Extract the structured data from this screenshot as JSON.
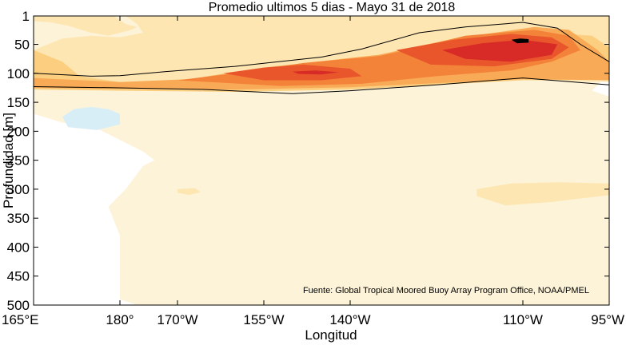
{
  "chart_data": {
    "type": "contour",
    "title": "Promedio ultimos 5 dias - Mayo 31 de 2018",
    "xlabel": "Longitud",
    "ylabel": "Profundidad [m]",
    "x_ticks": [
      {
        "value": 165,
        "label": "165°E"
      },
      {
        "value": 180,
        "label": "180°"
      },
      {
        "value": 190,
        "label": "170°W"
      },
      {
        "value": 205,
        "label": "155°W"
      },
      {
        "value": 220,
        "label": "140°W"
      },
      {
        "value": 250,
        "label": "110°W"
      },
      {
        "value": 265,
        "label": "95°W"
      }
    ],
    "y_ticks": [
      1,
      50,
      100,
      150,
      200,
      250,
      300,
      350,
      400,
      450,
      500
    ],
    "xlim": [
      165,
      265
    ],
    "ylim": [
      500,
      1
    ],
    "annotation": "Fuente: Global Tropical Moored Buoy Array Program Office, NOAA/PMEL",
    "levels": [
      {
        "name": "l1",
        "color": "#fdf3d9"
      },
      {
        "name": "l2",
        "color": "#fde6b2"
      },
      {
        "name": "l3",
        "color": "#fccf80"
      },
      {
        "name": "l4",
        "color": "#f9aa56"
      },
      {
        "name": "l5",
        "color": "#f4833a"
      },
      {
        "name": "l6",
        "color": "#e9562b"
      },
      {
        "name": "l7",
        "color": "#d82a26"
      },
      {
        "name": "l8",
        "color": "#000000"
      }
    ],
    "negative_level": {
      "name": "n1",
      "color": "#d8eef7"
    },
    "polygons": [
      {
        "level": "l1",
        "points": [
          [
            165,
            1
          ],
          [
            265,
            1
          ],
          [
            265,
            100
          ],
          [
            262,
            130
          ],
          [
            265,
            140
          ],
          [
            265,
            500
          ],
          [
            183,
            500
          ],
          [
            180,
            490
          ],
          [
            180,
            380
          ],
          [
            178,
            330
          ],
          [
            181,
            300
          ],
          [
            184,
            260
          ],
          [
            186,
            250
          ],
          [
            184,
            235
          ],
          [
            175,
            190
          ],
          [
            170,
            185
          ],
          [
            165,
            170
          ]
        ]
      },
      {
        "level": "n1",
        "points": [
          [
            170,
            175
          ],
          [
            172,
            162
          ],
          [
            175,
            158
          ],
          [
            178,
            162
          ],
          [
            180,
            170
          ],
          [
            180,
            188
          ],
          [
            176,
            198
          ],
          [
            171,
            193
          ]
        ]
      },
      {
        "level": "n1",
        "points": [
          [
            176,
            165
          ],
          [
            177,
            162
          ],
          [
            178,
            163
          ],
          [
            177,
            168
          ]
        ]
      },
      {
        "level": "l2",
        "points": [
          [
            165,
            1
          ],
          [
            179,
            1
          ],
          [
            181,
            15
          ],
          [
            183,
            20
          ],
          [
            182,
            25
          ],
          [
            178,
            35
          ],
          [
            175,
            30
          ],
          [
            171,
            18
          ],
          [
            168,
            12
          ],
          [
            165,
            10
          ]
        ]
      },
      {
        "level": "l2",
        "points": [
          [
            181,
            1
          ],
          [
            265,
            1
          ],
          [
            265,
            115
          ],
          [
            250,
            112
          ],
          [
            220,
            125
          ],
          [
            200,
            130
          ],
          [
            180,
            128
          ],
          [
            165,
            118
          ],
          [
            165,
            60
          ],
          [
            170,
            40
          ],
          [
            175,
            35
          ],
          [
            180,
            38
          ],
          [
            184,
            30
          ],
          [
            183,
            15
          ]
        ]
      },
      {
        "level": "l2",
        "points": [
          [
            242,
            300
          ],
          [
            248,
            290
          ],
          [
            256,
            288
          ],
          [
            265,
            290
          ],
          [
            265,
            310
          ],
          [
            255,
            322
          ],
          [
            247,
            328
          ],
          [
            242,
            312
          ]
        ]
      },
      {
        "level": "l2",
        "points": [
          [
            190,
            300
          ],
          [
            193,
            298
          ],
          [
            194,
            305
          ],
          [
            192,
            310
          ],
          [
            190,
            306
          ]
        ]
      },
      {
        "level": "l3",
        "points": [
          [
            165,
            60
          ],
          [
            170,
            80
          ],
          [
            173,
            105
          ],
          [
            180,
            115
          ],
          [
            195,
            115
          ],
          [
            215,
            110
          ],
          [
            230,
            80
          ],
          [
            243,
            45
          ],
          [
            255,
            30
          ],
          [
            262,
            35
          ],
          [
            265,
            55
          ],
          [
            265,
            110
          ],
          [
            250,
            112
          ],
          [
            220,
            128
          ],
          [
            200,
            132
          ],
          [
            180,
            130
          ],
          [
            165,
            128
          ]
        ]
      },
      {
        "level": "l4",
        "points": [
          [
            165,
            108
          ],
          [
            180,
            115
          ],
          [
            192,
            110
          ],
          [
            205,
            90
          ],
          [
            225,
            68
          ],
          [
            238,
            40
          ],
          [
            252,
            20
          ],
          [
            258,
            25
          ],
          [
            263,
            60
          ],
          [
            265,
            80
          ],
          [
            265,
            112
          ],
          [
            250,
            110
          ],
          [
            220,
            124
          ],
          [
            200,
            128
          ],
          [
            180,
            127
          ],
          [
            165,
            125
          ]
        ]
      },
      {
        "level": "l5",
        "points": [
          [
            190,
            112
          ],
          [
            200,
            100
          ],
          [
            212,
            82
          ],
          [
            225,
            70
          ],
          [
            232,
            55
          ],
          [
            240,
            35
          ],
          [
            252,
            25
          ],
          [
            258,
            35
          ],
          [
            260,
            60
          ],
          [
            255,
            80
          ],
          [
            248,
            95
          ],
          [
            235,
            105
          ],
          [
            222,
            118
          ],
          [
            208,
            122
          ]
        ]
      },
      {
        "level": "l6",
        "points": [
          [
            198,
            100
          ],
          [
            205,
            90
          ],
          [
            212,
            85
          ],
          [
            220,
            92
          ],
          [
            222,
            105
          ],
          [
            215,
            112
          ],
          [
            205,
            112
          ]
        ]
      },
      {
        "level": "l6",
        "points": [
          [
            228,
            60
          ],
          [
            238,
            42
          ],
          [
            248,
            32
          ],
          [
            255,
            38
          ],
          [
            258,
            55
          ],
          [
            255,
            75
          ],
          [
            245,
            88
          ],
          [
            234,
            85
          ]
        ]
      },
      {
        "level": "l7",
        "points": [
          [
            210,
            97
          ],
          [
            214,
            95
          ],
          [
            218,
            98
          ],
          [
            215,
            102
          ],
          [
            211,
            101
          ]
        ]
      },
      {
        "level": "l7",
        "points": [
          [
            236,
            60
          ],
          [
            243,
            48
          ],
          [
            250,
            42
          ],
          [
            256,
            50
          ],
          [
            255,
            68
          ],
          [
            248,
            80
          ],
          [
            240,
            75
          ]
        ]
      },
      {
        "level": "l8",
        "points": [
          [
            248,
            42
          ],
          [
            249.5,
            40
          ],
          [
            251,
            41
          ],
          [
            251,
            47
          ],
          [
            249,
            48
          ]
        ]
      }
    ],
    "contour_lines": [
      {
        "name": "isotherm-upper",
        "points": [
          [
            165,
            100
          ],
          [
            175,
            105
          ],
          [
            180,
            104
          ],
          [
            188,
            97
          ],
          [
            200,
            88
          ],
          [
            215,
            72
          ],
          [
            222,
            58
          ],
          [
            232,
            30
          ],
          [
            240,
            20
          ],
          [
            250,
            12
          ],
          [
            256,
            22
          ],
          [
            260,
            50
          ],
          [
            265,
            80
          ]
        ]
      },
      {
        "name": "isotherm-lower",
        "points": [
          [
            165,
            123
          ],
          [
            180,
            125
          ],
          [
            195,
            128
          ],
          [
            210,
            135
          ],
          [
            220,
            130
          ],
          [
            235,
            120
          ],
          [
            250,
            108
          ],
          [
            265,
            120
          ]
        ]
      }
    ]
  }
}
